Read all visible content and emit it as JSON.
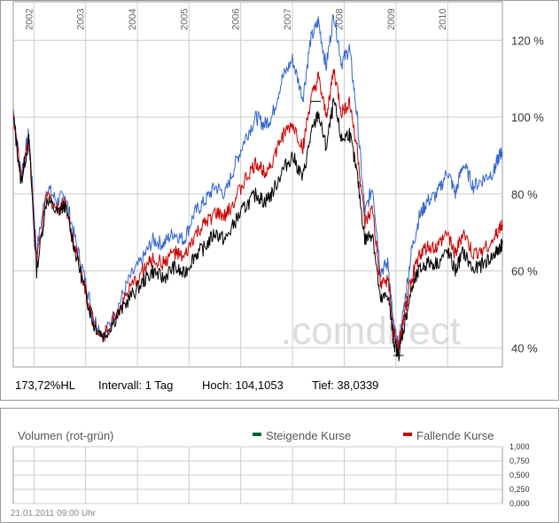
{
  "chart_data": [
    {
      "type": "line",
      "title": "",
      "years": [
        "2002",
        "2003",
        "2004",
        "2005",
        "2006",
        "2007",
        "2008",
        "2009",
        "2010"
      ],
      "y_ticks": [
        "40 %",
        "60 %",
        "80 %",
        "100 %",
        "120 %"
      ],
      "ylim": [
        35,
        130
      ],
      "xlim": [
        2001.6,
        2011.06
      ],
      "series": [
        {
          "name": "blue",
          "color": "#3366cc",
          "x": [
            2001.6,
            2001.75,
            2001.9,
            2002.05,
            2002.25,
            2002.45,
            2002.6,
            2002.8,
            2003.0,
            2003.15,
            2003.35,
            2003.6,
            2003.85,
            2004.1,
            2004.3,
            2004.5,
            2004.7,
            2004.9,
            2005.1,
            2005.3,
            2005.5,
            2005.7,
            2005.9,
            2006.1,
            2006.3,
            2006.45,
            2006.6,
            2006.8,
            2007.0,
            2007.2,
            2007.35,
            2007.5,
            2007.65,
            2007.8,
            2007.95,
            2008.1,
            2008.25,
            2008.4,
            2008.55,
            2008.7,
            2008.85,
            2008.95,
            2009.05,
            2009.15,
            2009.3,
            2009.45,
            2009.6,
            2009.8,
            2010.0,
            2010.15,
            2010.3,
            2010.5,
            2010.7,
            2010.9,
            2011.0,
            2011.06
          ],
          "y": [
            102,
            85,
            96,
            65,
            82,
            78,
            80,
            68,
            57,
            48,
            43,
            50,
            58,
            63,
            68,
            67,
            70,
            68,
            75,
            78,
            82,
            80,
            88,
            95,
            100,
            98,
            100,
            110,
            115,
            105,
            120,
            125,
            113,
            127,
            114,
            118,
            100,
            75,
            82,
            60,
            62,
            46,
            40,
            50,
            65,
            74,
            78,
            80,
            86,
            80,
            88,
            82,
            84,
            86,
            90,
            91
          ]
        },
        {
          "name": "red",
          "color": "#cc0000",
          "x": [
            2001.6,
            2001.75,
            2001.9,
            2002.05,
            2002.25,
            2002.45,
            2002.6,
            2002.8,
            2003.0,
            2003.15,
            2003.35,
            2003.6,
            2003.85,
            2004.1,
            2004.3,
            2004.5,
            2004.7,
            2004.9,
            2005.1,
            2005.3,
            2005.5,
            2005.7,
            2005.9,
            2006.1,
            2006.3,
            2006.45,
            2006.6,
            2006.8,
            2007.0,
            2007.2,
            2007.35,
            2007.5,
            2007.65,
            2007.8,
            2007.95,
            2008.1,
            2008.25,
            2008.4,
            2008.55,
            2008.7,
            2008.85,
            2008.95,
            2009.05,
            2009.15,
            2009.3,
            2009.45,
            2009.6,
            2009.8,
            2010.0,
            2010.15,
            2010.3,
            2010.5,
            2010.7,
            2010.9,
            2011.0,
            2011.06
          ],
          "y": [
            101,
            84,
            95,
            62,
            80,
            76,
            78,
            66,
            55,
            47,
            43,
            49,
            55,
            60,
            63,
            62,
            65,
            63,
            69,
            72,
            75,
            74,
            79,
            84,
            88,
            86,
            88,
            95,
            98,
            92,
            104,
            110,
            100,
            112,
            101,
            104,
            92,
            72,
            76,
            56,
            58,
            44,
            40,
            47,
            58,
            64,
            66,
            66,
            70,
            64,
            70,
            64,
            66,
            68,
            71,
            72
          ]
        },
        {
          "name": "black",
          "color": "#000000",
          "x": [
            2001.6,
            2001.75,
            2001.9,
            2002.05,
            2002.25,
            2002.45,
            2002.6,
            2002.8,
            2003.0,
            2003.15,
            2003.35,
            2003.6,
            2003.85,
            2004.1,
            2004.3,
            2004.5,
            2004.7,
            2004.9,
            2005.1,
            2005.3,
            2005.5,
            2005.7,
            2005.9,
            2006.1,
            2006.3,
            2006.45,
            2006.6,
            2006.8,
            2007.0,
            2007.2,
            2007.35,
            2007.5,
            2007.65,
            2007.8,
            2007.95,
            2008.1,
            2008.25,
            2008.4,
            2008.55,
            2008.7,
            2008.85,
            2008.95,
            2009.05,
            2009.15,
            2009.3,
            2009.45,
            2009.6,
            2009.8,
            2010.0,
            2010.15,
            2010.3,
            2010.5,
            2010.7,
            2010.9,
            2011.0,
            2011.06
          ],
          "y": [
            100,
            83,
            94,
            60,
            79,
            75,
            77,
            65,
            54,
            46,
            43,
            48,
            53,
            57,
            60,
            58,
            61,
            59,
            64,
            66,
            70,
            68,
            73,
            77,
            80,
            78,
            80,
            86,
            90,
            84,
            95,
            101,
            92,
            104,
            94,
            96,
            85,
            68,
            70,
            52,
            54,
            42,
            38,
            45,
            55,
            60,
            62,
            62,
            65,
            60,
            65,
            60,
            62,
            64,
            66,
            67
          ]
        }
      ],
      "stats": {
        "hl": "173,72%HL",
        "interval": "Intervall: 1 Tag",
        "high": "Hoch: 104,1053",
        "low": "Tief: 38,0339"
      },
      "watermark": ".comdirect"
    },
    {
      "type": "bar",
      "title": "Volumen (rot-grün)",
      "legend": [
        {
          "label": "Steigende Kurse",
          "color": "#006633"
        },
        {
          "label": "Fallende Kurse",
          "color": "#cc0000"
        }
      ],
      "y_ticks": [
        "1,000",
        "0,750",
        "0,500",
        "0,250",
        "0,000"
      ],
      "ylim": [
        0,
        1
      ],
      "values": [],
      "timestamp": "21.01.2011 09:00 Uhr"
    }
  ]
}
